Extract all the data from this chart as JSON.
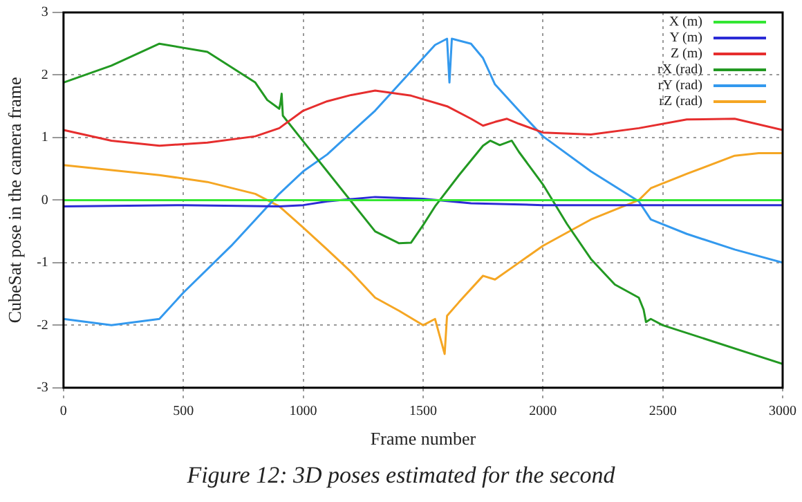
{
  "chart_data": {
    "type": "line",
    "xlabel": "Frame number",
    "ylabel": "CubeSat pose in the camera frame",
    "annotations": [
      "Figure 12: 3D poses estimated for the second"
    ],
    "xlim": [
      0,
      3000
    ],
    "xticks": [
      0,
      500,
      1000,
      1500,
      2000,
      2500,
      3000
    ],
    "ylim": [
      -3,
      3
    ],
    "yticks": [
      -3,
      -2,
      -1,
      0,
      1,
      2,
      3
    ],
    "grid": true,
    "legend": "top right",
    "marker": "none",
    "line_style": "solid",
    "series": [
      {
        "name": "X (m)",
        "color": "#33e633",
        "x": [
          0,
          1000,
          2000,
          3000
        ],
        "values": [
          0,
          0,
          0,
          0
        ]
      },
      {
        "name": "Y (m)",
        "color": "#2b2bd6",
        "x": [
          0,
          500,
          900,
          1000,
          1100,
          1300,
          1500,
          1700,
          2000,
          3000
        ],
        "values": [
          -0.1,
          -0.08,
          -0.1,
          -0.08,
          -0.02,
          0.05,
          0.02,
          -0.05,
          -0.08,
          -0.08
        ]
      },
      {
        "name": "Z (m)",
        "color": "#e62e2e",
        "x": [
          0,
          200,
          400,
          600,
          800,
          900,
          1000,
          1100,
          1200,
          1300,
          1450,
          1600,
          1700,
          1750,
          1800,
          1850,
          1900,
          2000,
          2200,
          2400,
          2600,
          2800,
          3000
        ],
        "values": [
          1.12,
          0.95,
          0.87,
          0.92,
          1.02,
          1.15,
          1.43,
          1.58,
          1.68,
          1.75,
          1.67,
          1.5,
          1.3,
          1.19,
          1.25,
          1.3,
          1.22,
          1.08,
          1.05,
          1.15,
          1.29,
          1.3,
          1.12
        ]
      },
      {
        "name": "rX (rad)",
        "color": "#229922",
        "x": [
          0,
          200,
          400,
          600,
          800,
          850,
          900,
          905,
          910,
          915,
          1000,
          1100,
          1200,
          1300,
          1400,
          1450,
          1500,
          1550,
          1650,
          1750,
          1780,
          1820,
          1870,
          1900,
          2000,
          2100,
          2200,
          2300,
          2400,
          2420,
          2430,
          2450,
          2500,
          3000
        ],
        "values": [
          1.88,
          2.15,
          2.5,
          2.37,
          1.88,
          1.6,
          1.46,
          1.55,
          1.7,
          1.35,
          0.94,
          0.46,
          -0.02,
          -0.5,
          -0.69,
          -0.68,
          -0.4,
          -0.1,
          0.4,
          0.87,
          0.95,
          0.88,
          0.95,
          0.77,
          0.25,
          -0.38,
          -0.94,
          -1.35,
          -1.56,
          -1.75,
          -1.95,
          -1.9,
          -2.0,
          -2.62
        ]
      },
      {
        "name": "rY (rad)",
        "color": "#3399ee",
        "x": [
          0,
          200,
          400,
          500,
          700,
          900,
          1000,
          1100,
          1200,
          1300,
          1400,
          1500,
          1550,
          1600,
          1610,
          1620,
          1700,
          1750,
          1800,
          1900,
          2000,
          2200,
          2400,
          2450,
          2600,
          2800,
          3000
        ],
        "values": [
          -1.9,
          -2.0,
          -1.9,
          -1.48,
          -0.73,
          0.1,
          0.46,
          0.73,
          1.08,
          1.43,
          1.85,
          2.27,
          2.48,
          2.58,
          1.88,
          2.58,
          2.5,
          2.27,
          1.85,
          1.43,
          1.02,
          0.46,
          -0.02,
          -0.31,
          -0.54,
          -0.79,
          -1.0
        ]
      },
      {
        "name": "rZ (rad)",
        "color": "#f5a623",
        "x": [
          0,
          400,
          600,
          800,
          900,
          1000,
          1100,
          1200,
          1300,
          1400,
          1500,
          1550,
          1590,
          1600,
          1650,
          1750,
          1800,
          1900,
          2000,
          2200,
          2400,
          2450,
          2600,
          2800,
          2900,
          3000
        ],
        "values": [
          0.56,
          0.4,
          0.29,
          0.1,
          -0.1,
          -0.44,
          -0.79,
          -1.15,
          -1.56,
          -1.77,
          -2.0,
          -1.9,
          -2.46,
          -1.85,
          -1.63,
          -1.21,
          -1.27,
          -1.0,
          -0.73,
          -0.31,
          0,
          0.19,
          0.42,
          0.71,
          0.75,
          0.75
        ]
      }
    ]
  }
}
